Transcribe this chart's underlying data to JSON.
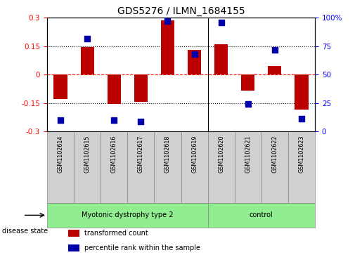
{
  "title": "GDS5276 / ILMN_1684155",
  "samples": [
    "GSM1102614",
    "GSM1102615",
    "GSM1102616",
    "GSM1102617",
    "GSM1102618",
    "GSM1102619",
    "GSM1102620",
    "GSM1102621",
    "GSM1102622",
    "GSM1102623"
  ],
  "transformed_count": [
    -0.13,
    0.147,
    -0.155,
    -0.145,
    0.285,
    0.13,
    0.16,
    -0.085,
    0.045,
    -0.185
  ],
  "percentile_rank": [
    10,
    82,
    10,
    9,
    97,
    68,
    96,
    24,
    72,
    11
  ],
  "groups": [
    {
      "label": "Myotonic dystrophy type 2",
      "start": 0,
      "end": 5,
      "color": "#90EE90"
    },
    {
      "label": "control",
      "start": 6,
      "end": 9,
      "color": "#90EE90"
    }
  ],
  "bar_color": "#BB0000",
  "dot_color": "#0000AA",
  "ylim_left": [
    -0.3,
    0.3
  ],
  "ylim_right": [
    0,
    100
  ],
  "yticks_left": [
    -0.3,
    -0.15,
    0,
    0.15,
    0.3
  ],
  "yticks_right": [
    0,
    25,
    50,
    75,
    100
  ],
  "ytick_labels_left": [
    "-0.3",
    "-0.15",
    "0",
    "0.15",
    "0.3"
  ],
  "ytick_labels_right": [
    "0",
    "25",
    "50",
    "75",
    "100%"
  ],
  "hlines": [
    0.15,
    0.0,
    -0.15
  ],
  "hline_styles": [
    "dotted",
    "dashed",
    "dotted"
  ],
  "hline_colors": [
    "black",
    "red",
    "black"
  ],
  "legend_items": [
    {
      "label": "transformed count",
      "color": "#BB0000"
    },
    {
      "label": "percentile rank within the sample",
      "color": "#0000AA"
    }
  ],
  "disease_label": "disease state",
  "bar_width": 0.5,
  "dot_size": 28,
  "n_samples": 10,
  "disease_group_boundary": 5
}
